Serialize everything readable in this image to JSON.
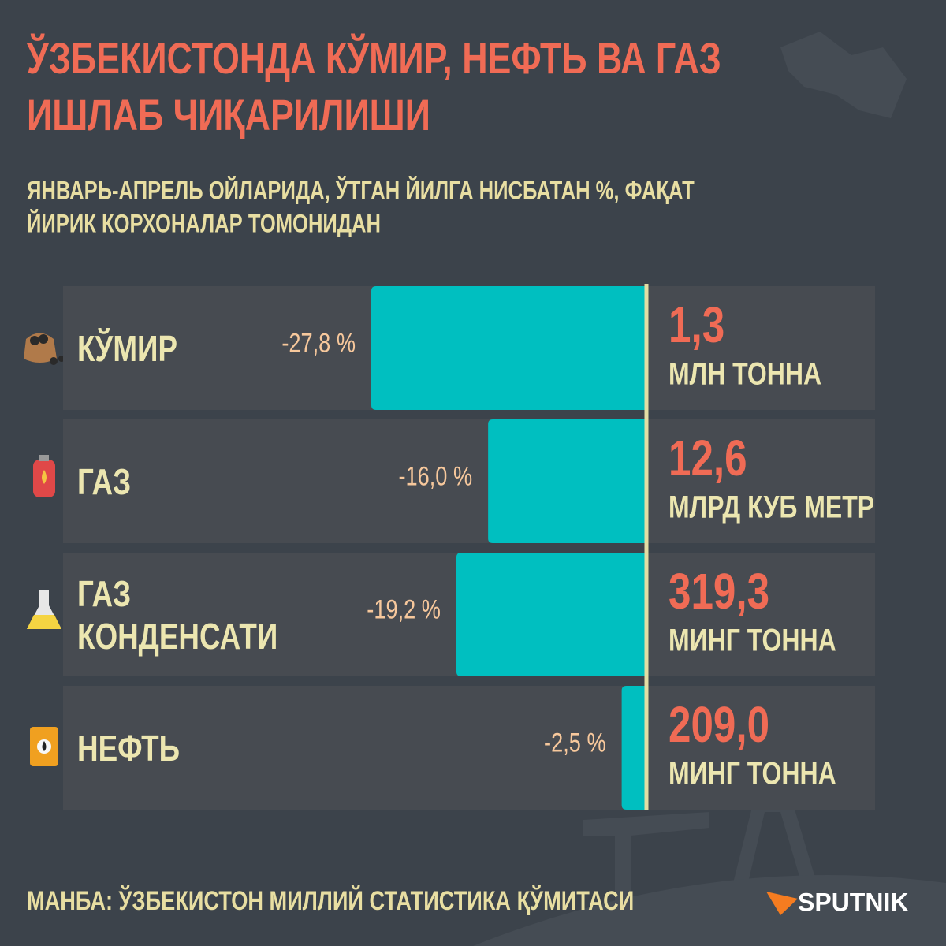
{
  "chart_data": {
    "type": "bar",
    "orientation": "horizontal",
    "title": [
      "ЎЗБЕКИСТОНДА КЎМИР, НЕФТЬ ВА ГАЗ",
      "ИШЛАБ ЧИҚАРИЛИШИ"
    ],
    "subtitle": [
      "ЯНВАРЬ-АПРЕЛЬ ОЙЛАРИДА, ЎТГАН ЙИЛГА НИСБАТАН %, ФАҚАТ",
      "ЙИРИК КОРХОНАЛАР ТОМОНИДАН"
    ],
    "categories": [
      "КЎМИР",
      "ГАЗ",
      "ГАЗ КОНДЕНСАТИ",
      "НЕФТЬ"
    ],
    "values": [
      -27.8,
      -16.0,
      -19.2,
      -2.5
    ],
    "value_labels": [
      "-27,8 %",
      "-16,0 %",
      "-19,2 %",
      "-2,5 %"
    ],
    "color": "#00bfc0",
    "amounts": [
      "1,3",
      "12,6",
      "319,3",
      "209,0"
    ],
    "units": [
      "МЛН ТОННА",
      "МЛРД КУБ МЕТР",
      "МИНГ ТОННА",
      "МИНГ ТОННА"
    ],
    "source": "МАНБА: ЎЗБЕКИСТОН МИЛЛИЙ СТАТИСТИКА ҚЎМИТАСИ",
    "brand": "SPUTNIK"
  }
}
